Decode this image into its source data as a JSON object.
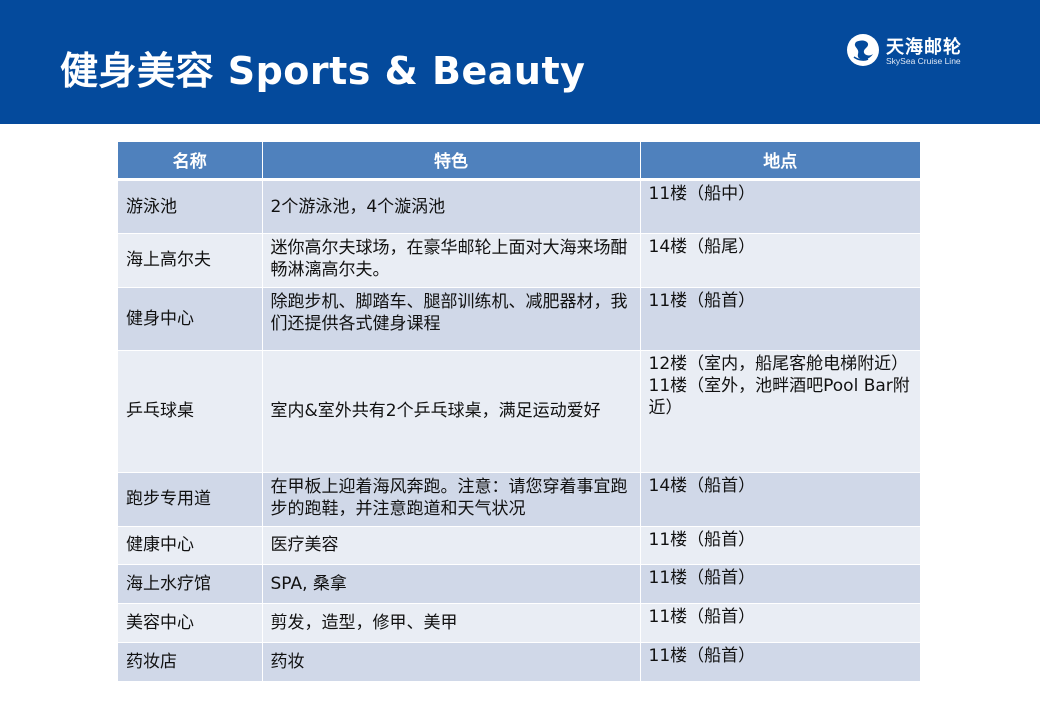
{
  "header": {
    "title": "健身美容  Sports & Beauty",
    "logo_cn": "天海邮轮",
    "logo_en": "SkySea Cruise Line",
    "logo_icon": "skysea-logo-icon",
    "bg_color": "#044a9c"
  },
  "table": {
    "columns": [
      "名称",
      "特色",
      "地点"
    ],
    "header_color": "#4f81bd",
    "row_colors": [
      "#d0d8e8",
      "#e9edf4"
    ],
    "rows": [
      {
        "name": "游泳池",
        "feature": "2个游泳池，4个漩涡池",
        "location": "11楼（船中）"
      },
      {
        "name": "海上高尔夫",
        "feature": "迷你高尔夫球场，在豪华邮轮上面对大海来场酣畅淋漓高尔夫。",
        "location": "14楼（船尾）"
      },
      {
        "name": "健身中心",
        "feature": "除跑步机、脚踏车、腿部训练机、减肥器材，我们还提供各式健身课程",
        "location": "11楼（船首）"
      },
      {
        "name": "乒乓球桌",
        "feature": "室内&室外共有2个乒乓球桌，满足运动爱好",
        "location": "12楼（室内，船尾客舱电梯附近）",
        "location2": "11楼（室外，池畔酒吧Pool Bar附近）"
      },
      {
        "name": "跑步专用道",
        "feature": "在甲板上迎着海风奔跑。注意：请您穿着事宜跑步的跑鞋，并注意跑道和天气状况",
        "location": "14楼（船首）"
      },
      {
        "name": "健康中心",
        "feature": "医疗美容",
        "location": "11楼（船首）"
      },
      {
        "name": "海上水疗馆",
        "feature": "SPA, 桑拿",
        "location": "11楼（船首）"
      },
      {
        "name": "美容中心",
        "feature": "剪发，造型，修甲、美甲",
        "location": "11楼（船首）"
      },
      {
        "name": "药妆店",
        "feature": "药妆",
        "location": "11楼（船首）"
      }
    ]
  }
}
